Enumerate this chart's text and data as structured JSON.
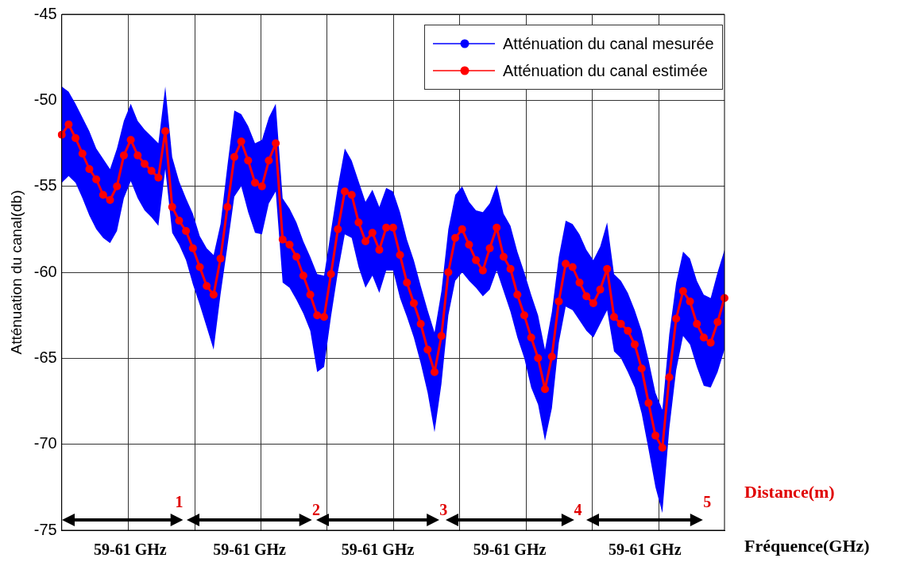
{
  "chart_data": {
    "type": "line",
    "ylabel": "Atténuation du canal(db)",
    "xlabel": "Fréquence(GHz)",
    "categories": [
      null,
      null,
      null,
      null,
      null,
      null,
      null,
      null,
      null,
      null,
      null,
      null,
      null,
      null,
      null,
      null,
      null,
      null,
      null,
      null,
      null,
      null,
      null,
      null,
      null,
      null,
      null,
      null,
      null,
      null,
      null,
      null,
      null,
      null,
      null,
      null,
      null,
      null,
      null,
      null,
      null,
      null,
      null,
      null,
      null,
      null,
      null,
      null,
      null,
      null,
      null,
      null,
      null,
      null,
      null,
      null,
      null,
      null,
      null,
      null,
      null,
      null,
      null,
      null,
      null,
      null,
      null,
      null,
      null,
      null,
      null,
      null,
      null,
      null,
      null,
      null,
      null,
      null,
      null,
      null,
      null,
      null,
      null,
      null,
      null,
      null,
      null,
      null,
      null,
      null,
      null,
      null,
      null,
      null,
      null,
      null,
      null
    ],
    "series": [
      {
        "name": "Atténuation du canal mesurée",
        "color": "#0000ff",
        "values": [
          null,
          null,
          null,
          null,
          null,
          null,
          null,
          null,
          null,
          null,
          null,
          null,
          null,
          null,
          null,
          null,
          null,
          null,
          null,
          null,
          null,
          null,
          null,
          null,
          null,
          null,
          null,
          null,
          null,
          null,
          null,
          null,
          null,
          null,
          null,
          null,
          null,
          null,
          null,
          null,
          null,
          null,
          null,
          null,
          null,
          null,
          null,
          null,
          null,
          null,
          null,
          null,
          null,
          null,
          null,
          null,
          null,
          null,
          null,
          null,
          null,
          null,
          null,
          null,
          null,
          null,
          null,
          null,
          null,
          null,
          null,
          null,
          null,
          null,
          null,
          null,
          null,
          null,
          null,
          null,
          null,
          null,
          null,
          null,
          null,
          null,
          null,
          null,
          null,
          null,
          null,
          null,
          null,
          null,
          null,
          null,
          null
        ],
        "upper": [
          -49.2,
          -49.5,
          -50.2,
          -51.0,
          -51.8,
          -52.8,
          -53.4,
          -54.0,
          -52.8,
          -51.2,
          -50.2,
          -51.2,
          -51.7,
          -52.1,
          -52.5,
          -49.2,
          -53.3,
          -54.7,
          -55.7,
          -56.6,
          -57.9,
          -58.6,
          -59.0,
          -57.2,
          -53.8,
          -50.6,
          -50.8,
          -51.5,
          -52.5,
          -52.3,
          -51.0,
          -50.2,
          -55.7,
          -56.3,
          -57.1,
          -58.2,
          -59.1,
          -60.1,
          -60.2,
          -57.6,
          -55.0,
          -52.8,
          -53.5,
          -54.7,
          -55.9,
          -55.2,
          -56.2,
          -55.1,
          -55.3,
          -56.5,
          -58.1,
          -59.3,
          -60.8,
          -62.2,
          -63.5,
          -61.1,
          -57.5,
          -55.5,
          -55.0,
          -55.9,
          -56.4,
          -56.5,
          -56.0,
          -54.9,
          -56.6,
          -57.3,
          -58.8,
          -60.0,
          -61.3,
          -62.5,
          -64.5,
          -62.3,
          -59.1,
          -57.0,
          -57.2,
          -57.8,
          -58.7,
          -59.3,
          -58.5,
          -57.1,
          -60.1,
          -60.5,
          -61.2,
          -62.2,
          -63.4,
          -65.1,
          -67.0,
          -68.0,
          -63.6,
          -60.6,
          -58.8,
          -59.2,
          -60.5,
          -61.3,
          -61.5,
          -60.0,
          -58.7
        ],
        "lower": [
          -54.8,
          -54.4,
          -54.8,
          -55.7,
          -56.7,
          -57.5,
          -58.0,
          -58.3,
          -57.6,
          -55.7,
          -54.7,
          -55.7,
          -56.4,
          -56.8,
          -57.3,
          -54.0,
          -57.7,
          -58.4,
          -59.3,
          -60.7,
          -61.9,
          -63.2,
          -64.5,
          -61.3,
          -58.5,
          -55.6,
          -55.0,
          -56.5,
          -57.7,
          -57.8,
          -56.0,
          -55.3,
          -60.6,
          -60.9,
          -61.6,
          -62.4,
          -63.4,
          -65.8,
          -65.5,
          -62.6,
          -60.0,
          -57.8,
          -58.0,
          -59.7,
          -60.9,
          -60.2,
          -61.2,
          -59.9,
          -59.9,
          -61.5,
          -62.6,
          -63.8,
          -65.3,
          -67.0,
          -69.3,
          -66.5,
          -62.5,
          -60.5,
          -60.0,
          -60.5,
          -60.9,
          -61.4,
          -61.0,
          -59.9,
          -61.1,
          -62.3,
          -63.8,
          -65.0,
          -66.7,
          -67.7,
          -69.8,
          -67.9,
          -64.1,
          -62.0,
          -62.2,
          -62.8,
          -63.4,
          -63.8,
          -63.0,
          -62.2,
          -64.6,
          -65.0,
          -65.8,
          -66.7,
          -68.2,
          -70.3,
          -72.5,
          -74.0,
          -69.1,
          -65.7,
          -63.7,
          -64.2,
          -65.5,
          -66.6,
          -66.7,
          -65.8,
          -64.5
        ]
      },
      {
        "name": "Atténuation du canal estimée",
        "color": "#ff0000",
        "values": [
          -52.0,
          -51.4,
          -52.2,
          -53.1,
          -54.0,
          -54.6,
          -55.5,
          -55.8,
          -55.0,
          -53.2,
          -52.3,
          -53.2,
          -53.7,
          -54.1,
          -54.5,
          -51.8,
          -56.2,
          -57.0,
          -57.6,
          -58.6,
          -59.7,
          -60.8,
          -61.3,
          -59.2,
          -56.2,
          -53.3,
          -52.4,
          -53.5,
          -54.8,
          -55.0,
          -53.5,
          -52.5,
          -58.1,
          -58.4,
          -59.1,
          -60.2,
          -61.3,
          -62.5,
          -62.6,
          -60.1,
          -57.5,
          -55.3,
          -55.5,
          -57.1,
          -58.2,
          -57.7,
          -58.7,
          -57.4,
          -57.4,
          -59.0,
          -60.6,
          -61.8,
          -63.0,
          -64.5,
          -65.8,
          -63.7,
          -60.0,
          -58.0,
          -57.5,
          -58.4,
          -59.3,
          -59.9,
          -58.6,
          -57.4,
          -59.1,
          -59.8,
          -61.3,
          -62.5,
          -63.8,
          -65.0,
          -66.8,
          -64.9,
          -61.7,
          -59.5,
          -59.7,
          -60.6,
          -61.4,
          -61.8,
          -61.0,
          -59.8,
          -62.6,
          -63.0,
          -63.4,
          -64.2,
          -65.6,
          -67.6,
          -69.5,
          -70.2,
          -66.1,
          -62.7,
          -61.1,
          -61.7,
          -63.0,
          -63.8,
          -64.1,
          -62.9,
          -61.5
        ]
      }
    ],
    "ylim": [
      -75,
      -45
    ],
    "yticks": [
      -75,
      -70,
      -65,
      -60,
      -55,
      -50,
      -45
    ],
    "tick_labels": "y",
    "grid": true,
    "legend": "top right",
    "marker": "circle",
    "line_style": "solid",
    "annotations": [
      "59-61 GHz",
      "59-61 GHz",
      "59-61 GHz",
      "59-61 GHz",
      "59-61 GHz",
      "1",
      "2",
      "3",
      "4",
      "5",
      "Distance(m)"
    ]
  }
}
